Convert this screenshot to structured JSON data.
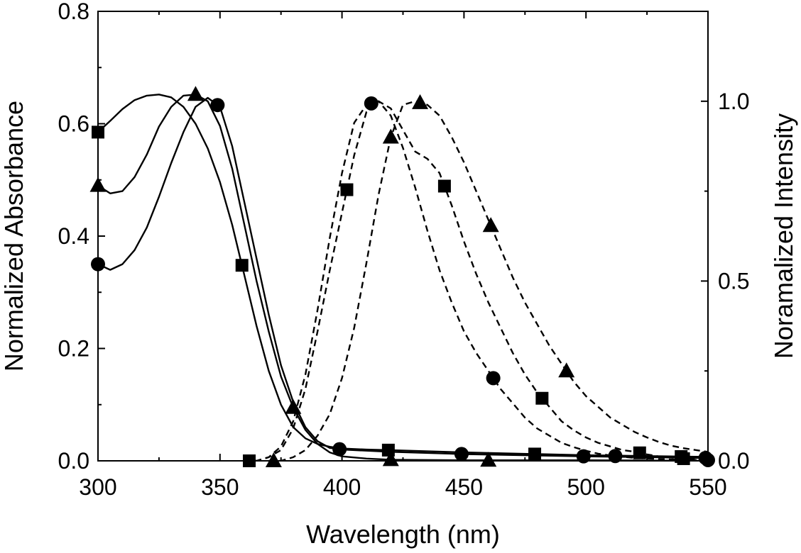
{
  "chart_data": {
    "type": "line",
    "xlabel": "Wavelength (nm)",
    "ylabel": "Normalized Absorbance",
    "y2label": "Noramalized Intensity",
    "xlim": [
      300,
      550
    ],
    "ylim": [
      0,
      0.8
    ],
    "y2lim": [
      0,
      1.25
    ],
    "xticks": [
      300,
      350,
      400,
      450,
      500,
      550
    ],
    "yticks": [
      0.0,
      0.2,
      0.4,
      0.6,
      0.8
    ],
    "y2ticks": [
      0.0,
      0.5,
      1.0
    ],
    "x_tick_labels": [
      "300",
      "350",
      "400",
      "450",
      "500",
      "550"
    ],
    "y_tick_labels": [
      "0.0",
      "0.2",
      "0.4",
      "0.6",
      "0.8"
    ],
    "y2_tick_labels": [
      "0.0",
      "0.5",
      "1.0"
    ],
    "grid": false,
    "legend": "none",
    "series": [
      {
        "marker": "square",
        "style": "solid",
        "axis": "left",
        "x": [
          300,
          305,
          310,
          315,
          320,
          325,
          330,
          335,
          340,
          345,
          350,
          355,
          360,
          365,
          370,
          375,
          380,
          385,
          390,
          395,
          400,
          410,
          420,
          450,
          500,
          550
        ],
        "y": [
          0.585,
          0.605,
          0.626,
          0.642,
          0.65,
          0.652,
          0.647,
          0.63,
          0.6,
          0.556,
          0.496,
          0.42,
          0.33,
          0.24,
          0.16,
          0.1,
          0.06,
          0.04,
          0.03,
          0.025,
          0.022,
          0.02,
          0.019,
          0.015,
          0.01,
          0.007
        ],
        "marker_x": [
          300,
          359,
          419,
          479,
          539
        ]
      },
      {
        "marker": "triangle",
        "style": "solid",
        "axis": "left",
        "x": [
          300,
          305,
          310,
          315,
          320,
          325,
          330,
          335,
          340,
          345,
          350,
          355,
          360,
          365,
          370,
          375,
          380,
          385,
          390,
          395,
          400,
          410,
          420,
          450,
          500,
          550
        ],
        "y": [
          0.49,
          0.476,
          0.48,
          0.505,
          0.545,
          0.595,
          0.63,
          0.65,
          0.652,
          0.64,
          0.596,
          0.52,
          0.42,
          0.32,
          0.23,
          0.15,
          0.095,
          0.055,
          0.03,
          0.015,
          0.008,
          0.004,
          0.002,
          0.001,
          0.001,
          0.0
        ],
        "marker_x": [
          300,
          340,
          380,
          420,
          460
        ]
      },
      {
        "marker": "circle",
        "style": "solid",
        "axis": "left",
        "x": [
          300,
          305,
          310,
          315,
          320,
          325,
          330,
          335,
          340,
          345,
          350,
          355,
          360,
          365,
          370,
          375,
          380,
          385,
          390,
          395,
          400,
          410,
          420,
          450,
          500,
          550
        ],
        "y": [
          0.35,
          0.34,
          0.35,
          0.375,
          0.415,
          0.47,
          0.53,
          0.585,
          0.63,
          0.646,
          0.63,
          0.56,
          0.46,
          0.36,
          0.26,
          0.17,
          0.105,
          0.06,
          0.035,
          0.023,
          0.02,
          0.018,
          0.016,
          0.012,
          0.008,
          0.005
        ],
        "marker_x": [
          300,
          349,
          399,
          449,
          499,
          549
        ]
      },
      {
        "marker": "square",
        "style": "dashed",
        "axis": "right",
        "x": [
          360,
          365,
          370,
          375,
          380,
          385,
          390,
          395,
          400,
          405,
          410,
          415,
          420,
          425,
          430,
          435,
          440,
          445,
          450,
          455,
          460,
          465,
          470,
          475,
          480,
          485,
          490,
          495,
          500,
          505,
          510,
          515,
          520,
          525,
          530,
          540,
          550
        ],
        "y": [
          0.0,
          0.0,
          0.01,
          0.03,
          0.09,
          0.2,
          0.36,
          0.53,
          0.69,
          0.85,
          0.97,
          1.0,
          0.98,
          0.92,
          0.86,
          0.84,
          0.8,
          0.71,
          0.61,
          0.52,
          0.44,
          0.37,
          0.3,
          0.24,
          0.19,
          0.15,
          0.11,
          0.085,
          0.065,
          0.05,
          0.04,
          0.03,
          0.025,
          0.018,
          0.012,
          0.006,
          0.003
        ],
        "marker_x": [
          362,
          402,
          442,
          482,
          522,
          540
        ]
      },
      {
        "marker": "circle",
        "style": "dashed",
        "axis": "right",
        "x": [
          360,
          365,
          370,
          375,
          380,
          385,
          390,
          395,
          400,
          405,
          410,
          415,
          420,
          425,
          430,
          435,
          440,
          445,
          450,
          455,
          460,
          465,
          470,
          475,
          480,
          485,
          490,
          495,
          500,
          505,
          510,
          515,
          520,
          530,
          540,
          550
        ],
        "y": [
          0.0,
          0.0,
          0.01,
          0.04,
          0.11,
          0.24,
          0.42,
          0.62,
          0.8,
          0.94,
          0.99,
          1.0,
          0.96,
          0.87,
          0.76,
          0.64,
          0.53,
          0.44,
          0.36,
          0.3,
          0.25,
          0.2,
          0.16,
          0.12,
          0.09,
          0.07,
          0.05,
          0.038,
          0.028,
          0.02,
          0.015,
          0.011,
          0.008,
          0.005,
          0.003,
          0.002
        ],
        "marker_x": [
          412,
          462,
          512,
          550
        ]
      },
      {
        "marker": "triangle",
        "style": "dashed",
        "axis": "right",
        "x": [
          370,
          375,
          380,
          385,
          390,
          395,
          400,
          405,
          410,
          415,
          420,
          425,
          430,
          435,
          440,
          445,
          450,
          455,
          460,
          465,
          470,
          475,
          480,
          485,
          490,
          495,
          500,
          505,
          510,
          515,
          520,
          525,
          530,
          535,
          540,
          545,
          550
        ],
        "y": [
          0.0,
          0.0,
          0.01,
          0.03,
          0.07,
          0.13,
          0.23,
          0.37,
          0.55,
          0.74,
          0.9,
          0.99,
          1.0,
          0.99,
          0.96,
          0.9,
          0.83,
          0.75,
          0.67,
          0.59,
          0.51,
          0.44,
          0.38,
          0.32,
          0.27,
          0.22,
          0.18,
          0.15,
          0.12,
          0.1,
          0.08,
          0.065,
          0.052,
          0.042,
          0.035,
          0.03,
          0.025
        ],
        "marker_x": [
          372,
          420,
          432,
          461,
          492
        ]
      }
    ]
  }
}
